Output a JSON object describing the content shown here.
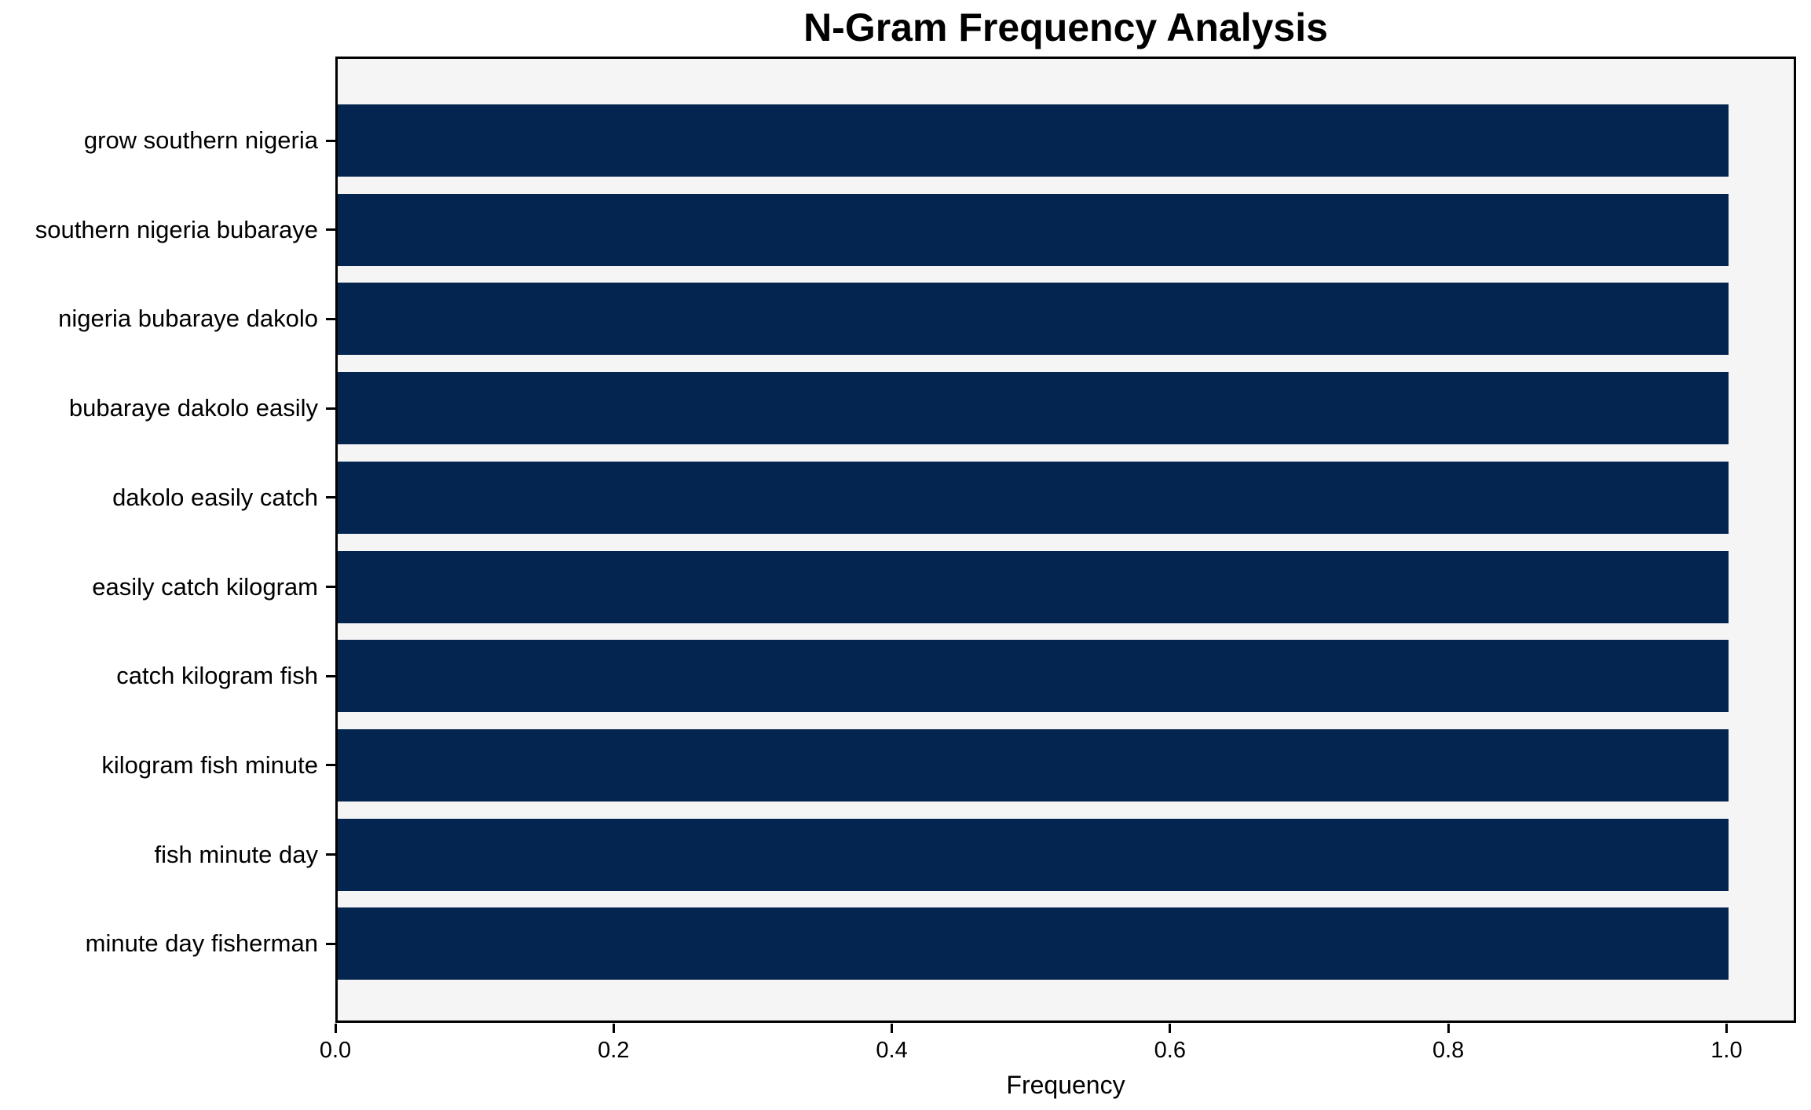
{
  "chart_data": {
    "type": "bar",
    "orientation": "horizontal",
    "title": "N-Gram Frequency Analysis",
    "xlabel": "Frequency",
    "ylabel": "",
    "categories": [
      "grow southern nigeria",
      "southern nigeria bubaraye",
      "nigeria bubaraye dakolo",
      "bubaraye dakolo easily",
      "dakolo easily catch",
      "easily catch kilogram",
      "catch kilogram fish",
      "kilogram fish minute",
      "fish minute day",
      "minute day fisherman"
    ],
    "values": [
      1.0,
      1.0,
      1.0,
      1.0,
      1.0,
      1.0,
      1.0,
      1.0,
      1.0,
      1.0
    ],
    "xlim": [
      0,
      1.05
    ],
    "xticks": [
      0.0,
      0.2,
      0.4,
      0.6,
      0.8,
      1.0
    ],
    "xtick_labels": [
      "0.0",
      "0.2",
      "0.4",
      "0.6",
      "0.8",
      "1.0"
    ],
    "grid": false,
    "legend": null,
    "colors": {
      "bar": "#04254f",
      "plot_background": "#f5f5f6",
      "figure_background": "#ffffff",
      "spine": "#000000",
      "text": "#000000"
    }
  }
}
